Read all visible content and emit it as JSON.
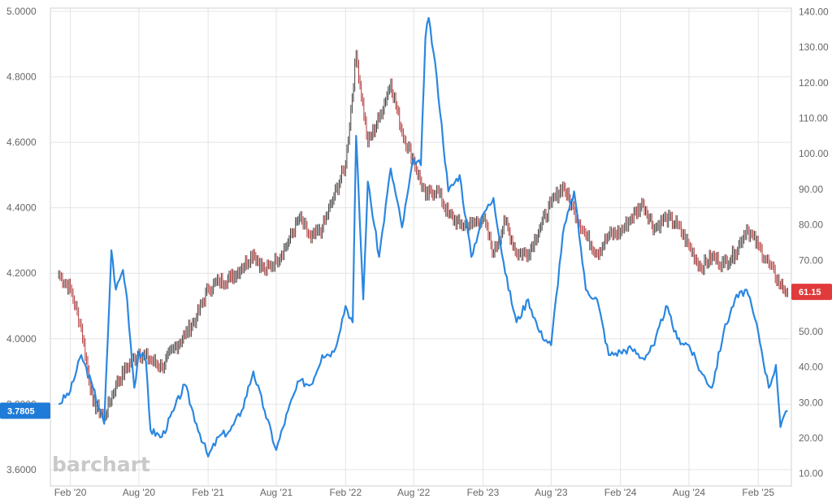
{
  "chart_data": {
    "type": "line",
    "title": "",
    "watermark": "barchart",
    "grid": true,
    "x_ticks": [
      "Feb '20",
      "Aug '20",
      "Feb '21",
      "Aug '21",
      "Feb '22",
      "Aug '22",
      "Feb '23",
      "Aug '23",
      "Feb '24",
      "Aug '24",
      "Feb '25"
    ],
    "left_axis": {
      "ticks": [
        "3.6000",
        "3.8000",
        "4.0000",
        "4.2000",
        "4.4000",
        "4.6000",
        "4.8000",
        "5.0000"
      ],
      "ylim": [
        3.55,
        5.01
      ]
    },
    "right_axis": {
      "ticks": [
        "10.00",
        "20.00",
        "30.00",
        "40.00",
        "50.00",
        "60.00",
        "70.00",
        "80.00",
        "90.00",
        "100.00",
        "110.00",
        "120.00",
        "130.00",
        "140.00"
      ],
      "ylim": [
        6.5,
        141
      ]
    },
    "series": [
      {
        "axis": "left",
        "color": "#2b87e0",
        "last_value_label": "3.7805",
        "label_color": "#1f7bd8",
        "points": [
          [
            "2020-01",
            3.8
          ],
          [
            "2020-02",
            3.84
          ],
          [
            "2020-03",
            3.95
          ],
          [
            "2020-04",
            3.85
          ],
          [
            "2020-05",
            3.74
          ],
          [
            "2020-05-20",
            4.27
          ],
          [
            "2020-06",
            4.15
          ],
          [
            "2020-06-20",
            4.21
          ],
          [
            "2020-07",
            4.12
          ],
          [
            "2020-07-20",
            3.85
          ],
          [
            "2020-08",
            3.96
          ],
          [
            "2020-08-20",
            3.93
          ],
          [
            "2020-09",
            3.72
          ],
          [
            "2020-10",
            3.7
          ],
          [
            "2020-11",
            3.78
          ],
          [
            "2020-12",
            3.86
          ],
          [
            "2021-01",
            3.74
          ],
          [
            "2021-02",
            3.64
          ],
          [
            "2021-03",
            3.7
          ],
          [
            "2021-04",
            3.72
          ],
          [
            "2021-05",
            3.78
          ],
          [
            "2021-06",
            3.9
          ],
          [
            "2021-07",
            3.78
          ],
          [
            "2021-08",
            3.66
          ],
          [
            "2021-09",
            3.78
          ],
          [
            "2021-10",
            3.87
          ],
          [
            "2021-11",
            3.86
          ],
          [
            "2021-12",
            3.95
          ],
          [
            "2022-01",
            3.96
          ],
          [
            "2022-02",
            4.1
          ],
          [
            "2022-02-20",
            4.05
          ],
          [
            "2022-03",
            4.62
          ],
          [
            "2022-03-20",
            4.12
          ],
          [
            "2022-04",
            4.48
          ],
          [
            "2022-05",
            4.25
          ],
          [
            "2022-06",
            4.52
          ],
          [
            "2022-07",
            4.34
          ],
          [
            "2022-08",
            4.55
          ],
          [
            "2022-08-20",
            4.53
          ],
          [
            "2022-09",
            4.92
          ],
          [
            "2022-09-10",
            4.98
          ],
          [
            "2022-10",
            4.8
          ],
          [
            "2022-11",
            4.45
          ],
          [
            "2022-12",
            4.5
          ],
          [
            "2023-01",
            4.25
          ],
          [
            "2023-02",
            4.38
          ],
          [
            "2023-03",
            4.43
          ],
          [
            "2023-04",
            4.2
          ],
          [
            "2023-05",
            4.05
          ],
          [
            "2023-06",
            4.12
          ],
          [
            "2023-07",
            4.02
          ],
          [
            "2023-08",
            3.98
          ],
          [
            "2023-09",
            4.32
          ],
          [
            "2023-10",
            4.45
          ],
          [
            "2023-11",
            4.15
          ],
          [
            "2023-12",
            4.12
          ],
          [
            "2024-01",
            3.95
          ],
          [
            "2024-02",
            3.96
          ],
          [
            "2024-03",
            3.97
          ],
          [
            "2024-04",
            3.94
          ],
          [
            "2024-05",
            3.98
          ],
          [
            "2024-06",
            4.1
          ],
          [
            "2024-07",
            4.0
          ],
          [
            "2024-08",
            3.98
          ],
          [
            "2024-09",
            3.9
          ],
          [
            "2024-10",
            3.85
          ],
          [
            "2024-11",
            4.02
          ],
          [
            "2024-12",
            4.12
          ],
          [
            "2025-01",
            4.15
          ],
          [
            "2025-02",
            4.02
          ],
          [
            "2025-03",
            3.85
          ],
          [
            "2025-03-20",
            3.92
          ],
          [
            "2025-04",
            3.73
          ],
          [
            "2025-04-20",
            3.78
          ]
        ]
      },
      {
        "axis": "right",
        "type": "ohlc",
        "color": "#404040",
        "last_value_label": "61.15",
        "label_color": "#e03a3a",
        "points": [
          [
            "2020-01",
            66.0
          ],
          [
            "2020-02",
            62.0
          ],
          [
            "2020-03",
            51.0
          ],
          [
            "2020-04",
            30.0
          ],
          [
            "2020-05",
            26.0
          ],
          [
            "2020-06",
            35.0
          ],
          [
            "2020-07",
            40.0
          ],
          [
            "2020-08",
            44.0
          ],
          [
            "2020-09",
            42.0
          ],
          [
            "2020-10",
            40.0
          ],
          [
            "2020-11",
            45.0
          ],
          [
            "2020-12",
            49.0
          ],
          [
            "2021-01",
            54.0
          ],
          [
            "2021-02",
            62.0
          ],
          [
            "2021-03",
            64.0
          ],
          [
            "2021-04",
            65.0
          ],
          [
            "2021-05",
            68.0
          ],
          [
            "2021-06",
            72.0
          ],
          [
            "2021-07",
            67.0
          ],
          [
            "2021-08",
            70.0
          ],
          [
            "2021-09",
            75.0
          ],
          [
            "2021-10",
            82.0
          ],
          [
            "2021-11",
            76.0
          ],
          [
            "2021-12",
            79.0
          ],
          [
            "2022-01",
            88.0
          ],
          [
            "2022-02",
            97.0
          ],
          [
            "2022-03",
            128.0
          ],
          [
            "2022-04",
            103.0
          ],
          [
            "2022-05",
            110.0
          ],
          [
            "2022-06",
            120.0
          ],
          [
            "2022-07",
            106.0
          ],
          [
            "2022-08",
            98.0
          ],
          [
            "2022-09",
            88.0
          ],
          [
            "2022-10",
            90.0
          ],
          [
            "2022-11",
            83.0
          ],
          [
            "2022-12",
            80.0
          ],
          [
            "2023-01",
            80.0
          ],
          [
            "2023-02",
            82.0
          ],
          [
            "2023-03",
            72.0
          ],
          [
            "2023-04",
            81.0
          ],
          [
            "2023-05",
            72.0
          ],
          [
            "2023-06",
            72.0
          ],
          [
            "2023-07",
            79.0
          ],
          [
            "2023-08",
            86.0
          ],
          [
            "2023-09",
            91.0
          ],
          [
            "2023-10",
            84.0
          ],
          [
            "2023-11",
            77.0
          ],
          [
            "2023-12",
            72.0
          ],
          [
            "2024-01",
            77.0
          ],
          [
            "2024-02",
            78.0
          ],
          [
            "2024-03",
            82.0
          ],
          [
            "2024-04",
            86.0
          ],
          [
            "2024-05",
            79.0
          ],
          [
            "2024-06",
            82.0
          ],
          [
            "2024-07",
            80.0
          ],
          [
            "2024-08",
            74.0
          ],
          [
            "2024-09",
            68.0
          ],
          [
            "2024-10",
            71.0
          ],
          [
            "2024-11",
            69.0
          ],
          [
            "2024-12",
            72.0
          ],
          [
            "2025-01",
            79.0
          ],
          [
            "2025-02",
            74.0
          ],
          [
            "2025-03",
            69.0
          ],
          [
            "2025-04",
            63.0
          ],
          [
            "2025-04-20",
            61.15
          ]
        ]
      }
    ]
  }
}
